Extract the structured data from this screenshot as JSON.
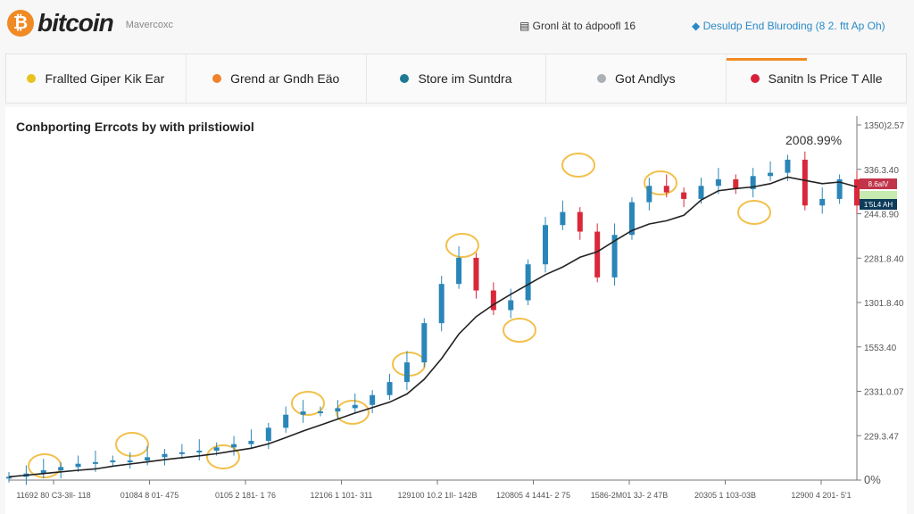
{
  "header": {
    "brand": "bitcoin",
    "brand_icon": "bitcoin-icon",
    "subtitle": "Mavercoxc",
    "link1": "Gronl ät to ádpoofl 16",
    "link2": "Desuldp End Bluroding (8 2. ftt Ap Oh)"
  },
  "tabs": [
    {
      "label": "Frallted Giper Kik Ear",
      "color": "#e8c21e"
    },
    {
      "label": "Grend ar Gndh Eäo",
      "color": "#f0832a"
    },
    {
      "label": "Store im Suntdra",
      "color": "#1e7a94"
    },
    {
      "label": "Got Andlys",
      "color": "#aab0b5"
    },
    {
      "label": "Sanitn ls Price T Alle",
      "color": "#d8203a",
      "active": true
    }
  ],
  "chart_data": {
    "type": "candlestick",
    "title": "Conbporting Errcots by with prilstiowiol",
    "annotation": "2008.99%",
    "ylim": [
      0,
      110
    ],
    "y_ticks": [
      "1350)2.57",
      "336.3.40",
      "244.8.90",
      "2281.8.40",
      "1301.8.40",
      "1553.40",
      "2331.0.07",
      "229.3.47",
      "0%"
    ],
    "x_ticks": [
      "11692 80 C3-3Il- 118",
      "01084 8 01- 475",
      "0105 2 181- 1 76",
      "12106 1 101- 311",
      "129100 10.2 1II- 142B",
      "120805 4 1441- 2 75",
      "1586-2M01 3J- 2 47B",
      "20305 1 103-03B",
      "12900 4 201- 5'1"
    ],
    "price_tags": [
      {
        "label": "8.6alV",
        "color": "#c0354a"
      },
      {
        "label": "",
        "color": "#c7eab0"
      },
      {
        "label": "1'5L4 AH",
        "color": "#0d3b5a"
      }
    ],
    "closes": [
      1,
      2,
      3,
      4,
      5,
      5.5,
      6,
      6,
      7,
      8,
      8.5,
      9,
      10,
      11,
      12,
      16,
      20,
      21,
      21,
      22,
      23,
      26,
      30,
      36,
      48,
      60,
      68,
      58,
      52,
      55,
      66,
      78,
      82,
      76,
      62,
      75,
      85,
      90,
      88,
      86,
      90,
      92,
      89,
      93,
      94,
      98,
      84,
      86,
      92,
      84
    ],
    "up_color": "#2a86b8",
    "down_color": "#d8283a",
    "ma_color": "#222222",
    "highlight_color": "#f2c04a"
  }
}
